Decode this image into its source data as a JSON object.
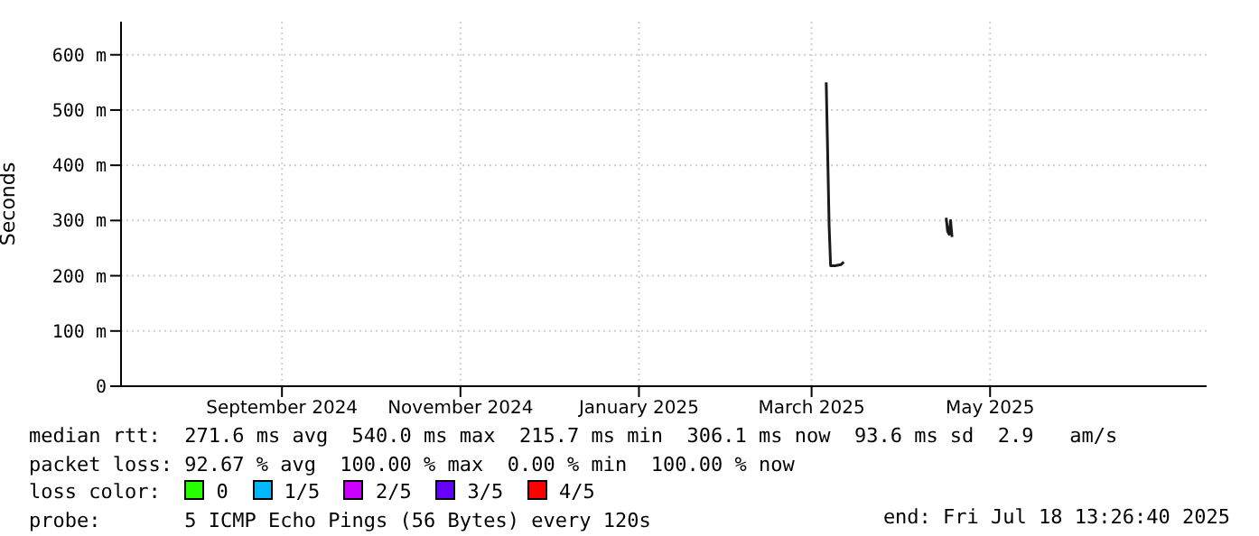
{
  "chart_data": {
    "type": "line",
    "ylabel": "Seconds",
    "xlim": [
      "2024-07-08",
      "2025-07-14"
    ],
    "xticks": [
      {
        "value": "2024-09-01",
        "label": "September 2024"
      },
      {
        "value": "2024-11-01",
        "label": "November 2024"
      },
      {
        "value": "2025-01-01",
        "label": "January 2025"
      },
      {
        "value": "2025-03-01",
        "label": "March 2025"
      },
      {
        "value": "2025-05-01",
        "label": "May 2025"
      }
    ],
    "ylim": [
      0,
      660
    ],
    "yticks": [
      0,
      {
        "value": 100,
        "label": "100 m"
      },
      {
        "value": 200,
        "label": "200 m"
      },
      {
        "value": 300,
        "label": "300 m"
      },
      {
        "value": 400,
        "label": "400 m"
      },
      {
        "value": 500,
        "label": "500 m"
      },
      {
        "value": 600,
        "label": "600 m"
      }
    ],
    "grid": true,
    "legend": "bottom",
    "legend_title": "loss color:",
    "x": [
      "2025-03-06",
      "2025-03-07",
      "2025-03-07T12:00",
      "2025-03-09",
      "2025-03-11",
      "2025-03-12",
      "2025-03-30",
      "2025-04-16",
      "2025-04-16T12:00",
      "2025-04-17",
      "2025-04-17T12:00",
      "2025-04-18"
    ],
    "series": [
      {
        "color": "#1a1a1a",
        "values": [
          550,
          290,
          218,
          218,
          220,
          225,
          null,
          305,
          280,
          275,
          300,
          270
        ]
      },
      {
        "name": "0",
        "color": "#26ff00",
        "values": [
          null,
          null,
          null,
          null,
          null,
          null,
          null,
          null,
          null,
          null,
          null,
          null
        ]
      },
      {
        "name": "1/5",
        "color": "#00b8ff",
        "values": [
          null,
          null,
          null,
          null,
          null,
          null,
          null,
          null,
          null,
          null,
          null,
          null
        ]
      },
      {
        "name": "2/5",
        "color": "#cc00ff",
        "values": [
          null,
          null,
          null,
          null,
          null,
          null,
          null,
          null,
          null,
          null,
          null,
          null
        ]
      },
      {
        "name": "3/5",
        "color": "#6600ff",
        "values": [
          null,
          null,
          null,
          null,
          null,
          null,
          null,
          null,
          null,
          null,
          null,
          null
        ]
      },
      {
        "name": "4/5",
        "color": "#ff0000",
        "values": [
          null,
          null,
          null,
          null,
          null,
          null,
          null,
          null,
          null,
          null,
          null,
          null
        ]
      }
    ],
    "annotations": [
      "median rtt:  271.6 ms avg  540.0 ms max  215.7 ms min  306.1 ms now  93.6 ms sd  2.9   am/s",
      "packet loss: 92.67 % avg  100.00 % max  0.00 % min  100.00 % now",
      "probe:       5 ICMP Echo Pings (56 Bytes) every 120s",
      "end: Fri Jul 18 13:26:40 2025"
    ]
  }
}
